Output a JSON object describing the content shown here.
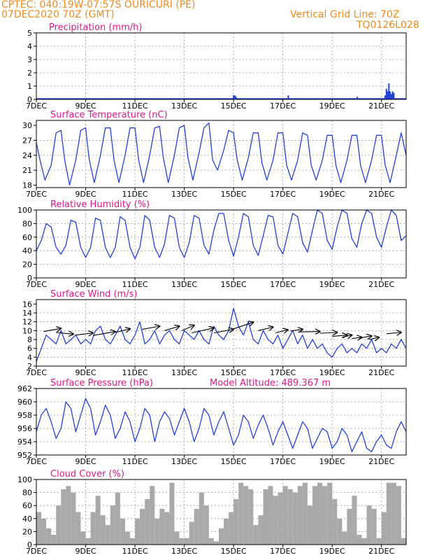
{
  "header": {
    "line1": "CPTEC:   040:19W-07:57S   OURICURI (PE)",
    "line2": "07DEC2020 70Z (GMT)",
    "grid_note": "Vertical Grid Line: 70Z",
    "code": "TQ0126L028"
  },
  "colors": {
    "header": "#f08a1c",
    "title": "#e0188a",
    "series": "#2340d8",
    "cloud": "#a9a9a9"
  },
  "chart_data": [
    {
      "type": "bar",
      "title": "Precipitation (mm/h)",
      "ylim": [
        0,
        5
      ],
      "yticks": [
        0,
        1,
        2,
        3,
        4,
        5
      ],
      "xlim": [
        0,
        15
      ],
      "xticks": [
        "7DEC",
        "9DEC",
        "11DEC",
        "13DEC",
        "15DEC",
        "17DEC",
        "19DEC",
        "21DEC"
      ],
      "xtick_pos": [
        0,
        2,
        4,
        6,
        8,
        10,
        12,
        14
      ],
      "bars": [
        [
          8.0,
          0.3
        ],
        [
          8.05,
          0.3
        ],
        [
          8.1,
          0.2
        ],
        [
          10.22,
          0.3
        ],
        [
          13.02,
          0.2
        ],
        [
          14.15,
          0.3
        ],
        [
          14.2,
          0.8
        ],
        [
          14.25,
          0.6
        ],
        [
          14.3,
          1.2
        ],
        [
          14.35,
          0.6
        ],
        [
          14.4,
          0.4
        ],
        [
          14.45,
          0.6
        ],
        [
          14.5,
          0.5
        ]
      ]
    },
    {
      "type": "line",
      "title": "Surface Temperature (nC)",
      "ylim": [
        17.5,
        31
      ],
      "yticks": [
        18,
        21,
        24,
        27,
        30
      ],
      "xlim": [
        0,
        15
      ],
      "xticks": [
        "7DEC",
        "9DEC",
        "11DEC",
        "13DEC",
        "15DEC",
        "17DEC",
        "19DEC",
        "21DEC"
      ],
      "xtick_pos": [
        0,
        2,
        4,
        6,
        8,
        10,
        12,
        14
      ],
      "x": [
        0.0,
        0.15,
        0.35,
        0.6,
        0.8,
        1.0,
        1.15,
        1.35,
        1.6,
        1.8,
        2.0,
        2.15,
        2.35,
        2.6,
        2.8,
        3.0,
        3.15,
        3.35,
        3.6,
        3.8,
        4.0,
        4.15,
        4.35,
        4.6,
        4.8,
        5.0,
        5.15,
        5.35,
        5.6,
        5.8,
        6.0,
        6.15,
        6.35,
        6.6,
        6.8,
        7.0,
        7.15,
        7.35,
        7.6,
        7.8,
        8.0,
        8.15,
        8.35,
        8.6,
        8.8,
        9.0,
        9.15,
        9.35,
        9.6,
        9.8,
        10.0,
        10.15,
        10.35,
        10.6,
        10.8,
        11.0,
        11.15,
        11.35,
        11.6,
        11.8,
        12.0,
        12.15,
        12.35,
        12.6,
        12.8,
        13.0,
        13.15,
        13.35,
        13.6,
        13.8,
        14.0,
        14.15,
        14.35,
        14.6,
        14.8,
        15.0
      ],
      "y": [
        26.5,
        23.0,
        19.0,
        22.0,
        28.5,
        29.0,
        23.0,
        18.0,
        23.0,
        29.0,
        29.5,
        23.0,
        18.5,
        24.0,
        29.5,
        29.5,
        23.0,
        18.5,
        24.0,
        29.5,
        29.5,
        23.0,
        18.5,
        24.0,
        29.5,
        29.8,
        23.5,
        18.5,
        24.0,
        29.5,
        30.0,
        23.5,
        19.0,
        24.5,
        29.5,
        30.5,
        23.0,
        21.0,
        25.0,
        29.0,
        28.5,
        23.0,
        19.0,
        23.5,
        28.5,
        28.5,
        22.5,
        19.0,
        23.0,
        28.5,
        28.5,
        22.0,
        19.0,
        23.0,
        28.5,
        28.0,
        22.0,
        19.0,
        23.0,
        28.0,
        28.0,
        22.0,
        18.5,
        23.0,
        28.0,
        28.0,
        22.0,
        18.5,
        23.0,
        28.0,
        28.0,
        22.0,
        18.5,
        24.0,
        28.5,
        24.0
      ]
    },
    {
      "type": "line",
      "title": "Relative Humidity (%)",
      "ylim": [
        0,
        100
      ],
      "yticks": [
        0,
        20,
        40,
        60,
        80,
        100
      ],
      "xlim": [
        0,
        15
      ],
      "xticks": [
        "7DEC",
        "9DEC",
        "11DEC",
        "13DEC",
        "15DEC",
        "17DEC",
        "19DEC",
        "21DEC"
      ],
      "xtick_pos": [
        0,
        2,
        4,
        6,
        8,
        10,
        12,
        14
      ],
      "x": [
        0.0,
        0.2,
        0.4,
        0.6,
        0.8,
        1.0,
        1.2,
        1.4,
        1.6,
        1.8,
        2.0,
        2.2,
        2.4,
        2.6,
        2.8,
        3.0,
        3.2,
        3.4,
        3.6,
        3.8,
        4.0,
        4.2,
        4.4,
        4.6,
        4.8,
        5.0,
        5.2,
        5.4,
        5.6,
        5.8,
        6.0,
        6.2,
        6.4,
        6.6,
        6.8,
        7.0,
        7.2,
        7.4,
        7.6,
        7.8,
        8.0,
        8.2,
        8.4,
        8.6,
        8.8,
        9.0,
        9.2,
        9.4,
        9.6,
        9.8,
        10.0,
        10.2,
        10.4,
        10.6,
        10.8,
        11.0,
        11.2,
        11.4,
        11.6,
        11.8,
        12.0,
        12.2,
        12.4,
        12.6,
        12.8,
        13.0,
        13.2,
        13.4,
        13.6,
        13.8,
        14.0,
        14.2,
        14.4,
        14.6,
        14.8,
        15.0
      ],
      "y": [
        40,
        55,
        80,
        75,
        45,
        35,
        48,
        85,
        82,
        45,
        30,
        45,
        88,
        85,
        45,
        30,
        45,
        90,
        85,
        45,
        28,
        45,
        92,
        85,
        45,
        30,
        50,
        92,
        88,
        45,
        30,
        52,
        92,
        88,
        48,
        35,
        70,
        95,
        95,
        55,
        32,
        60,
        95,
        90,
        48,
        33,
        62,
        92,
        90,
        48,
        35,
        65,
        95,
        90,
        52,
        38,
        70,
        100,
        95,
        55,
        42,
        75,
        100,
        95,
        58,
        45,
        80,
        100,
        95,
        60,
        45,
        75,
        100,
        92,
        55,
        62
      ]
    },
    {
      "type": "line",
      "title": "Surface Wind (m/s)",
      "ylim": [
        2,
        17
      ],
      "yticks": [
        2,
        4,
        6,
        8,
        10,
        12,
        14,
        16
      ],
      "xlim": [
        0,
        15
      ],
      "xticks": [
        "7DEC",
        "9DEC",
        "11DEC",
        "13DEC",
        "15DEC",
        "17DEC",
        "19DEC",
        "21DEC"
      ],
      "xtick_pos": [
        0,
        2,
        4,
        6,
        8,
        10,
        12,
        14
      ],
      "x": [
        0.0,
        0.2,
        0.4,
        0.6,
        0.8,
        1.0,
        1.2,
        1.4,
        1.6,
        1.8,
        2.0,
        2.2,
        2.4,
        2.6,
        2.8,
        3.0,
        3.2,
        3.4,
        3.6,
        3.8,
        4.0,
        4.2,
        4.4,
        4.6,
        4.8,
        5.0,
        5.2,
        5.4,
        5.6,
        5.8,
        6.0,
        6.2,
        6.4,
        6.6,
        6.8,
        7.0,
        7.2,
        7.4,
        7.6,
        7.8,
        8.0,
        8.2,
        8.4,
        8.6,
        8.8,
        9.0,
        9.2,
        9.4,
        9.6,
        9.8,
        10.0,
        10.2,
        10.4,
        10.6,
        10.8,
        11.0,
        11.2,
        11.4,
        11.6,
        11.8,
        12.0,
        12.2,
        12.4,
        12.6,
        12.8,
        13.0,
        13.2,
        13.4,
        13.6,
        13.8,
        14.0,
        14.2,
        14.4,
        14.6,
        14.8,
        15.0
      ],
      "y": [
        3,
        6,
        9,
        8,
        7,
        10,
        7,
        8,
        9,
        7,
        8,
        7,
        10,
        11,
        8,
        7,
        9,
        11,
        8,
        7,
        9,
        12,
        7,
        8,
        10,
        7,
        9,
        10,
        8,
        7,
        10,
        9,
        8,
        10,
        8,
        7,
        11,
        9,
        8,
        10,
        15,
        11,
        9,
        12,
        8,
        7,
        10,
        8,
        7,
        9,
        6,
        8,
        10,
        7,
        9,
        6,
        8,
        6,
        7,
        5,
        4,
        6,
        7,
        5,
        6,
        5,
        7,
        6,
        8,
        5,
        6,
        5,
        7,
        6,
        8,
        6
      ],
      "arrows": [
        [
          0.3,
          9.8,
          1.0,
          10.5
        ],
        [
          0.8,
          9.6,
          1.5,
          9.2
        ],
        [
          1.6,
          9.0,
          2.3,
          9.5
        ],
        [
          2.3,
          8.9,
          3.2,
          9.8
        ],
        [
          3.2,
          9.6,
          3.8,
          10.4
        ],
        [
          4.3,
          10.3,
          5.0,
          11.0
        ],
        [
          5.2,
          10.0,
          5.8,
          11.0
        ],
        [
          5.9,
          10.0,
          6.4,
          11.2
        ],
        [
          6.3,
          9.5,
          7.2,
          10.6
        ],
        [
          7.2,
          9.5,
          8.0,
          10.3
        ],
        [
          8.0,
          10.4,
          8.8,
          11.9
        ],
        [
          9.0,
          10.0,
          9.6,
          10.8
        ],
        [
          9.7,
          9.5,
          10.2,
          10.2
        ],
        [
          10.3,
          9.9,
          10.8,
          10.3
        ],
        [
          10.7,
          9.7,
          11.5,
          9.8
        ],
        [
          11.5,
          9.4,
          12.2,
          9.6
        ],
        [
          12.0,
          8.7,
          12.6,
          9.0
        ],
        [
          12.4,
          8.5,
          12.8,
          9.0
        ],
        [
          12.8,
          8.2,
          13.2,
          8.5
        ],
        [
          13.1,
          8.3,
          13.6,
          8.8
        ],
        [
          13.5,
          8.0,
          13.9,
          8.5
        ],
        [
          14.2,
          9.3,
          14.8,
          9.6
        ]
      ]
    },
    {
      "type": "line",
      "title": "Surface Pressure (hPa)",
      "annotation": "Model Altitude: 489.367  m",
      "ylim": [
        952,
        962
      ],
      "yticks": [
        952,
        954,
        956,
        958,
        960,
        962
      ],
      "xlim": [
        0,
        15
      ],
      "xticks": [
        "7DEC",
        "9DEC",
        "11DEC",
        "13DEC",
        "15DEC",
        "17DEC",
        "19DEC",
        "21DEC"
      ],
      "xtick_pos": [
        0,
        2,
        4,
        6,
        8,
        10,
        12,
        14
      ],
      "x": [
        0.0,
        0.2,
        0.4,
        0.6,
        0.8,
        1.0,
        1.2,
        1.4,
        1.6,
        1.8,
        2.0,
        2.2,
        2.4,
        2.6,
        2.8,
        3.0,
        3.2,
        3.4,
        3.6,
        3.8,
        4.0,
        4.2,
        4.4,
        4.6,
        4.8,
        5.0,
        5.2,
        5.4,
        5.6,
        5.8,
        6.0,
        6.2,
        6.4,
        6.6,
        6.8,
        7.0,
        7.2,
        7.4,
        7.6,
        7.8,
        8.0,
        8.2,
        8.4,
        8.6,
        8.8,
        9.0,
        9.2,
        9.4,
        9.6,
        9.8,
        10.0,
        10.2,
        10.4,
        10.6,
        10.8,
        11.0,
        11.2,
        11.4,
        11.6,
        11.8,
        12.0,
        12.2,
        12.4,
        12.6,
        12.8,
        13.0,
        13.2,
        13.4,
        13.6,
        13.8,
        14.0,
        14.2,
        14.4,
        14.6,
        14.8,
        15.0
      ],
      "y": [
        955.5,
        958,
        959,
        957,
        954.5,
        956,
        960,
        959,
        955.5,
        958,
        960.5,
        959,
        955,
        957,
        959.5,
        958,
        954.5,
        956,
        958.5,
        957,
        954,
        956,
        959,
        958,
        954,
        957,
        958.5,
        957.5,
        955,
        957,
        959,
        957,
        954,
        956,
        959,
        958,
        955,
        957,
        958.5,
        956,
        953.5,
        955,
        958,
        957,
        954.5,
        956.5,
        958,
        956,
        953.5,
        955.5,
        957,
        955,
        953,
        955,
        957,
        956,
        953,
        954.5,
        956,
        955.5,
        953,
        954,
        956,
        955,
        952.5,
        954,
        955.5,
        953,
        952.5,
        954,
        955,
        953.5,
        953,
        955.5,
        957,
        955.5
      ]
    },
    {
      "type": "area",
      "title": "Cloud Cover (%)",
      "ylim": [
        0,
        100
      ],
      "yticks": [
        0,
        20,
        40,
        60,
        80,
        100
      ],
      "xlim": [
        0,
        15
      ],
      "xticks": [
        "7DEC",
        "9DEC",
        "11DEC",
        "13DEC",
        "15DEC",
        "17DEC",
        "19DEC",
        "21DEC"
      ],
      "xtick_pos": [
        0,
        2,
        4,
        6,
        8,
        10,
        12,
        14
      ],
      "x": [
        0.0,
        0.2,
        0.4,
        0.6,
        0.8,
        1.0,
        1.2,
        1.4,
        1.6,
        1.8,
        2.0,
        2.2,
        2.4,
        2.6,
        2.8,
        3.0,
        3.2,
        3.4,
        3.6,
        3.8,
        4.0,
        4.2,
        4.4,
        4.6,
        4.8,
        5.0,
        5.2,
        5.4,
        5.6,
        5.8,
        6.0,
        6.2,
        6.4,
        6.6,
        6.8,
        7.0,
        7.2,
        7.4,
        7.6,
        7.8,
        8.0,
        8.2,
        8.4,
        8.6,
        8.8,
        9.0,
        9.2,
        9.4,
        9.6,
        9.8,
        10.0,
        10.2,
        10.4,
        10.6,
        10.8,
        11.0,
        11.2,
        11.4,
        11.6,
        11.8,
        12.0,
        12.2,
        12.4,
        12.6,
        12.8,
        13.0,
        13.2,
        13.4,
        13.6,
        13.8,
        14.0,
        14.2,
        14.4,
        14.6,
        14.8,
        15.0
      ],
      "y": [
        50,
        40,
        25,
        15,
        60,
        85,
        90,
        80,
        50,
        20,
        10,
        50,
        75,
        45,
        30,
        60,
        80,
        40,
        20,
        10,
        40,
        55,
        70,
        90,
        40,
        55,
        50,
        95,
        20,
        10,
        10,
        35,
        55,
        80,
        60,
        10,
        5,
        25,
        40,
        50,
        70,
        95,
        90,
        85,
        30,
        45,
        85,
        90,
        75,
        80,
        90,
        85,
        80,
        90,
        95,
        60,
        90,
        95,
        90,
        95,
        70,
        40,
        20,
        55,
        75,
        15,
        10,
        60,
        55,
        10,
        50,
        95,
        95,
        90,
        10,
        5
      ]
    }
  ]
}
